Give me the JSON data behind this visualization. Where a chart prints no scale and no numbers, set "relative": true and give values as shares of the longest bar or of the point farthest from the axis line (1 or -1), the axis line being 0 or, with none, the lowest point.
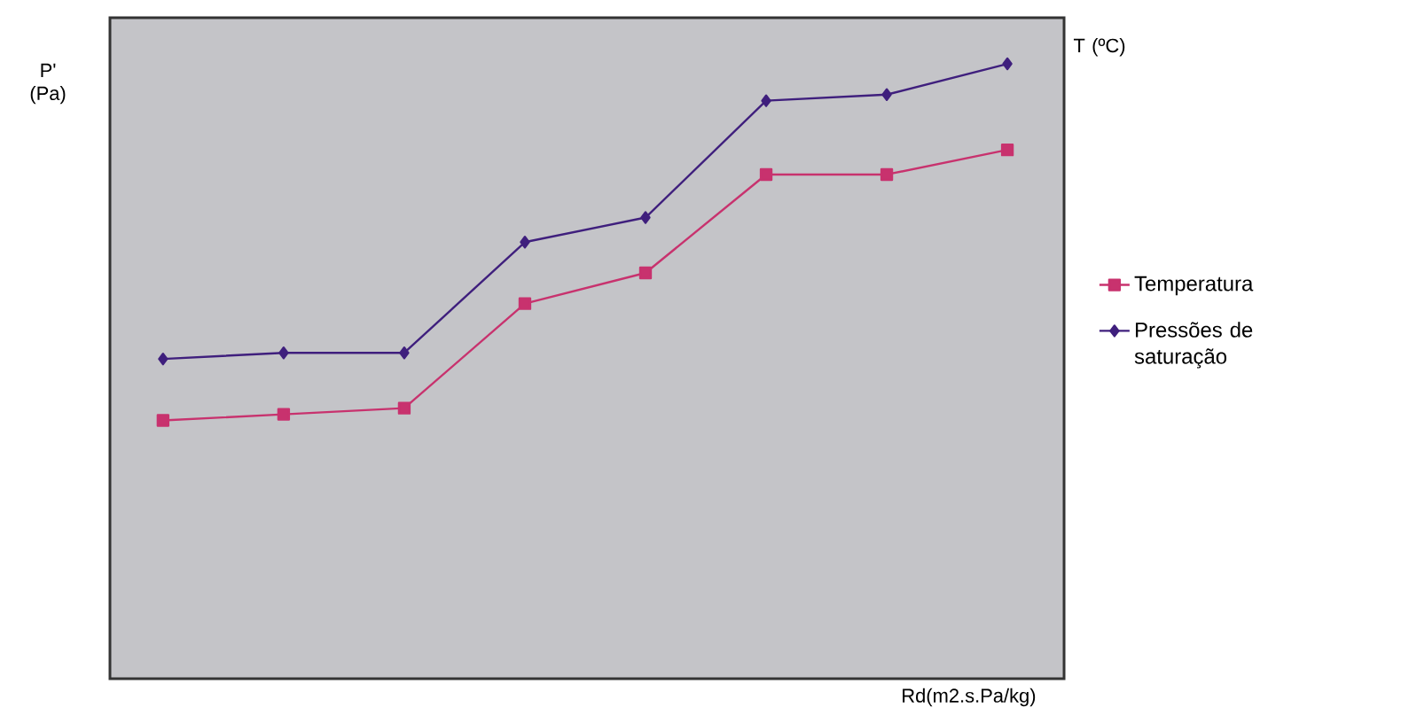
{
  "chart_data": {
    "type": "line",
    "relative": true,
    "ylabel": "P' (Pa)",
    "y2label": "T (ºC)",
    "xlabel": "Rd(m2.s.Pa/kg)",
    "legend": "right",
    "categories": [
      null,
      null,
      null,
      null,
      null,
      null,
      null,
      null
    ],
    "series": [
      {
        "name": "Temperatura",
        "color": "#c8326e",
        "marker": "square",
        "values": [
          0.42,
          0.43,
          0.44,
          0.61,
          0.66,
          0.82,
          0.82,
          0.86
        ]
      },
      {
        "name": "Pressões de saturação",
        "color": "#3f1f7d",
        "marker": "diamond",
        "values": [
          0.52,
          0.53,
          0.53,
          0.71,
          0.75,
          0.94,
          0.95,
          1
        ]
      }
    ]
  }
}
